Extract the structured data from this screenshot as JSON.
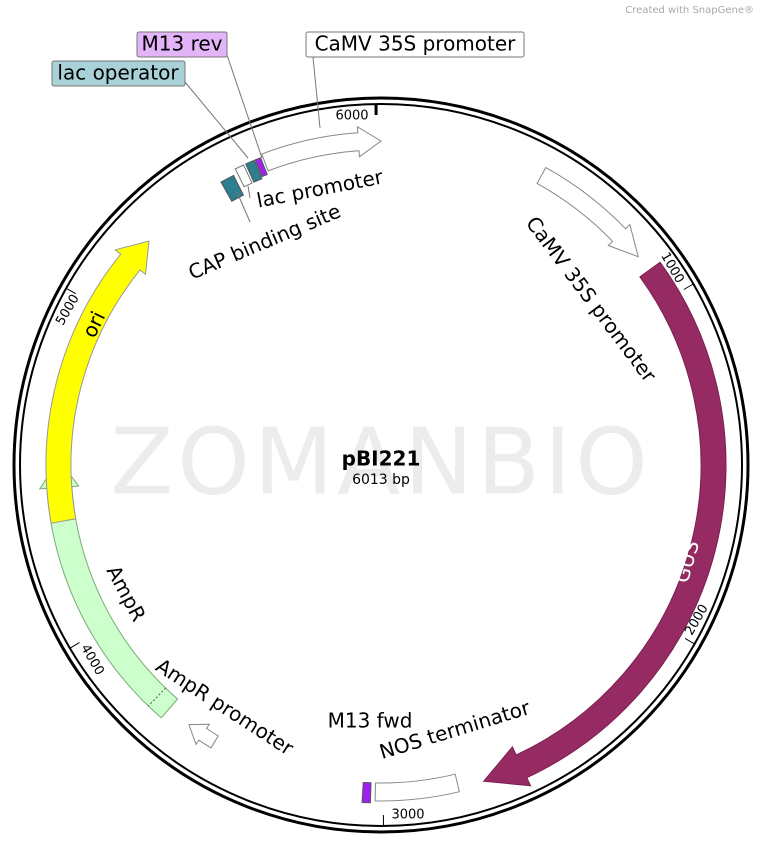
{
  "header": {
    "credit": "Created with SnapGene®"
  },
  "watermark": "ZOMANBIO",
  "plasmid": {
    "name": "pBI221",
    "length": "6013 bp"
  },
  "ticks": [
    "6000",
    "1000",
    "2000",
    "3000",
    "4000",
    "5000"
  ],
  "features": [
    {
      "label": "GUS"
    },
    {
      "label": "CaMV 35S promoter"
    },
    {
      "label": "CaMV 35S promoter"
    },
    {
      "label": "NOS terminator"
    },
    {
      "label": "M13 fwd"
    },
    {
      "label": "AmpR promoter"
    },
    {
      "label": "AmpR"
    },
    {
      "label": "ori"
    },
    {
      "label": "lac promoter"
    },
    {
      "label": "CAP binding site"
    },
    {
      "label": "lac operator"
    },
    {
      "label": "M13 rev"
    }
  ]
}
